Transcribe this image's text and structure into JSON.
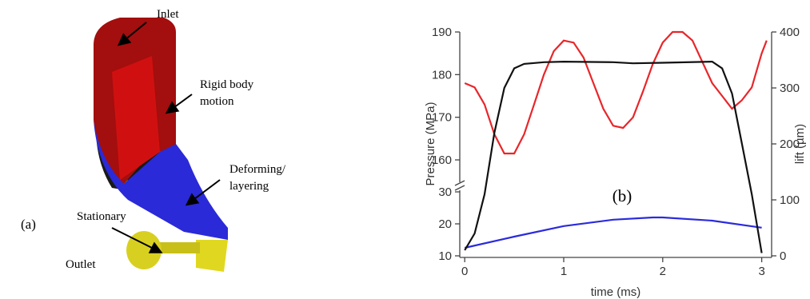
{
  "figure_a": {
    "panel_label": "(a)",
    "labels": {
      "inlet": [
        "Inlet"
      ],
      "rigid": [
        "Rigid body",
        "motion"
      ],
      "deforming": [
        "Deforming/",
        "layering"
      ],
      "stationary": [
        "Stationary"
      ],
      "outlet": [
        "Outlet"
      ]
    }
  },
  "chart_data": {
    "type": "line",
    "annotation": "(b)",
    "x_label": "time (ms)",
    "y_label": "Pressure (MPa)",
    "y2_label": "lift (µm)",
    "xlim": [
      -0.05,
      3.1
    ],
    "xticks": [
      0,
      1,
      2,
      3
    ],
    "ylim": [
      10,
      190
    ],
    "ybreak": [
      30,
      160
    ],
    "yticks": [
      10,
      20,
      30,
      160,
      170,
      180,
      190
    ],
    "y2lim": [
      0,
      400
    ],
    "y2ticks": [
      0,
      100,
      200,
      300,
      400
    ],
    "series": [
      {
        "color": "#e8262a",
        "x": [
          0,
          0.1,
          0.2,
          0.3,
          0.4,
          0.5,
          0.6,
          0.7,
          0.8,
          0.9,
          1.0,
          1.1,
          1.2,
          1.3,
          1.4,
          1.5,
          1.6,
          1.7,
          1.8,
          1.9,
          2.0,
          2.1,
          2.2,
          2.3,
          2.4,
          2.5,
          2.6,
          2.7,
          2.8,
          2.9,
          3.0,
          3.05
        ],
        "values": [
          178,
          177,
          173,
          166,
          161.5,
          161.5,
          166,
          173,
          180,
          185.5,
          188,
          187.5,
          184,
          178,
          172,
          168,
          167.5,
          170,
          176,
          182.5,
          187.5,
          190,
          190,
          188,
          183,
          178,
          175,
          172,
          174,
          177,
          185,
          188
        ]
      },
      {
        "color": "#2b2bdc",
        "x": [
          0,
          0.5,
          1.0,
          1.5,
          1.9,
          2.0,
          2.5,
          3.0
        ],
        "values": [
          12.5,
          16,
          19.3,
          21.3,
          22,
          22,
          21,
          18.8
        ]
      },
      {
        "color": "#111111",
        "axis": "y2",
        "x": [
          0,
          0.1,
          0.2,
          0.3,
          0.4,
          0.5,
          0.6,
          0.8,
          1.0,
          1.5,
          1.7,
          2.0,
          2.5,
          2.6,
          2.7,
          2.8,
          2.9,
          3.0
        ],
        "values": [
          10,
          40,
          110,
          220,
          300,
          335,
          343,
          346,
          347,
          346,
          344,
          345,
          347,
          335,
          290,
          200,
          110,
          5
        ]
      }
    ]
  }
}
